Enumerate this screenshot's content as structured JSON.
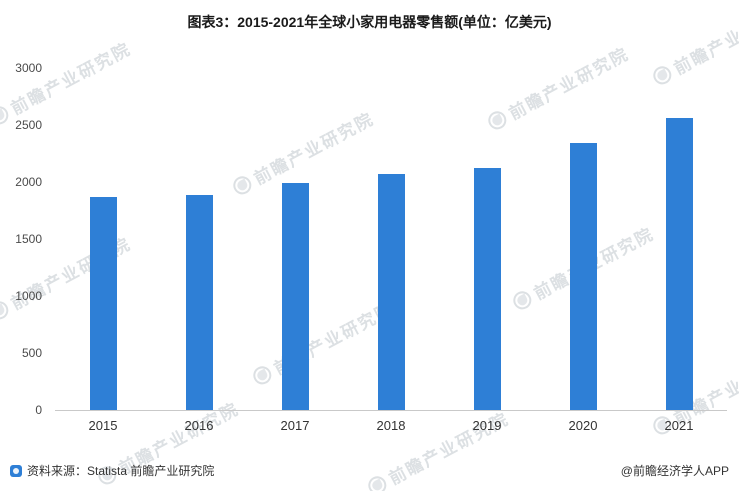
{
  "title": "图表3：2015-2021年全球小家用电器零售额(单位：亿美元)",
  "source": {
    "label": "资料来源：Statista 前瞻产业研究院"
  },
  "footer_right": "@前瞻经济学人APP",
  "watermark_text": "前瞻产业研究院",
  "colors": {
    "bar": "#2e7fd6",
    "axis": "#c9c9c9"
  },
  "chart_data": {
    "type": "bar",
    "title": "图表3：2015-2021年全球小家用电器零售额(单位：亿美元)",
    "categories": [
      "2015",
      "2016",
      "2017",
      "2018",
      "2019",
      "2020",
      "2021"
    ],
    "values": [
      1870,
      1890,
      1990,
      2070,
      2120,
      2340,
      2560
    ],
    "xlabel": "",
    "ylabel": "",
    "ylim": [
      0,
      3000
    ],
    "yticks": [
      0,
      500,
      1000,
      1500,
      2000,
      2500,
      3000
    ],
    "grid": false,
    "legend": "none",
    "series_color": "#2e7fd6"
  }
}
